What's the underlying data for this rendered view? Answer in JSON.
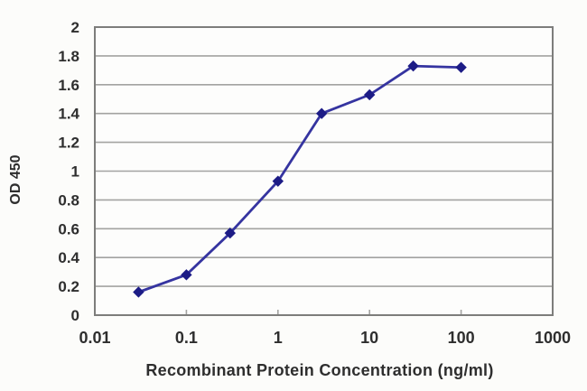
{
  "chart_data": {
    "type": "line",
    "title": "",
    "xlabel": "Recombinant Protein Concentration (ng/ml)",
    "ylabel": "OD 450",
    "x_scale": "log",
    "xlim": [
      0.01,
      1000
    ],
    "ylim": [
      0,
      2
    ],
    "x": [
      0.03,
      0.1,
      0.3,
      1,
      3,
      10,
      30,
      100
    ],
    "y": [
      0.16,
      0.28,
      0.57,
      0.93,
      1.4,
      1.53,
      1.73,
      1.72
    ],
    "x_ticks": [
      {
        "value": 0.01,
        "label": "0.01"
      },
      {
        "value": 0.1,
        "label": "0.1"
      },
      {
        "value": 1,
        "label": "1"
      },
      {
        "value": 10,
        "label": "10"
      },
      {
        "value": 100,
        "label": "100"
      },
      {
        "value": 1000,
        "label": "1000"
      }
    ],
    "y_ticks": [
      {
        "value": 0,
        "label": "0"
      },
      {
        "value": 0.2,
        "label": "0.2"
      },
      {
        "value": 0.4,
        "label": "0.4"
      },
      {
        "value": 0.6,
        "label": "0.6"
      },
      {
        "value": 0.8,
        "label": "0.8"
      },
      {
        "value": 1,
        "label": "1"
      },
      {
        "value": 1.2,
        "label": "1.2"
      },
      {
        "value": 1.4,
        "label": "1.4"
      },
      {
        "value": 1.6,
        "label": "1.6"
      },
      {
        "value": 1.8,
        "label": "1.8"
      },
      {
        "value": 2,
        "label": "2"
      }
    ],
    "grid": "horizontal",
    "legend": "none",
    "marker": "diamond",
    "colors": {
      "line": "#3534a0",
      "marker": "#1d1c86",
      "grid": "#a3a3a1",
      "axis_border": "#7d7d7b",
      "tick_text": "#2e2e2e",
      "background": "#fcfcfa"
    }
  }
}
